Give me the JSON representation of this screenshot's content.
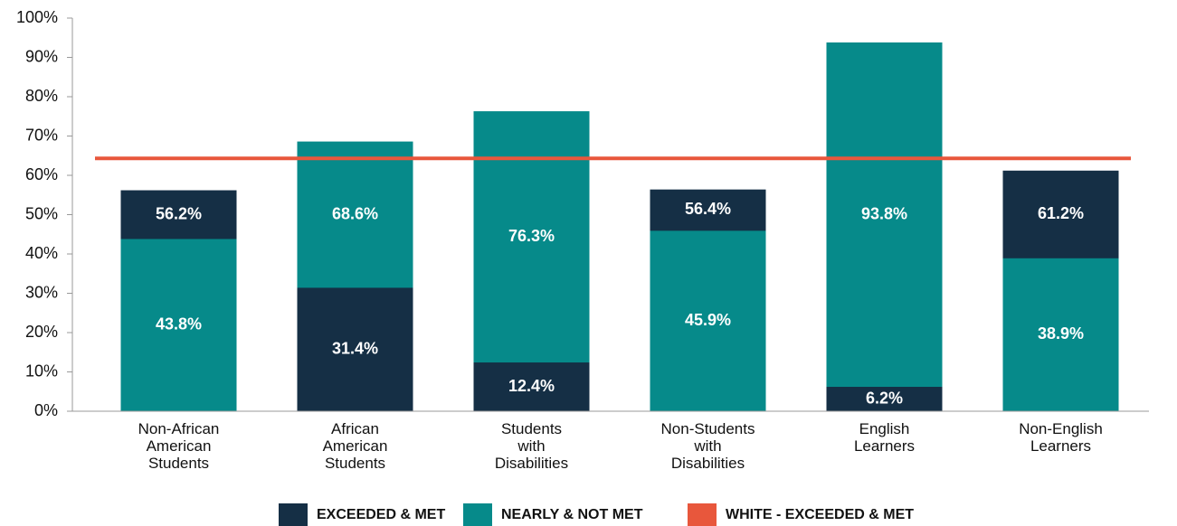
{
  "chart_data": {
    "type": "bar",
    "categories": [
      "Non-African\nAmerican\nStudents",
      "African\nAmerican\nStudents",
      "Students\nwith\nDisabilities",
      "Non-Students\nwith\nDisabilities",
      "English\nLearners",
      "Non-English\nLearners"
    ],
    "series": [
      {
        "name": "EXCEEDED & MET",
        "color": "#152f45",
        "values": [
          56.2,
          31.4,
          12.4,
          56.4,
          6.2,
          61.2
        ],
        "value_labels": [
          "56.2%",
          "31.4%",
          "12.4%",
          "56.4%",
          "6.2%",
          "61.2%"
        ]
      },
      {
        "name": "NEARLY & NOT MET",
        "color": "#068a8a",
        "values": [
          43.8,
          68.6,
          76.3,
          45.9,
          93.8,
          38.9
        ],
        "value_labels": [
          "43.8%",
          "68.6%",
          "76.3%",
          "45.9%",
          "93.8%",
          "38.9%"
        ]
      }
    ],
    "reference_line": {
      "name": "WHITE - EXCEEDED & MET",
      "color": "#e8573c",
      "value": 64.3
    },
    "ylim": [
      0,
      100
    ],
    "yticks": [
      {
        "value": 0,
        "label": "0%"
      },
      {
        "value": 10,
        "label": "10%"
      },
      {
        "value": 20,
        "label": "20%"
      },
      {
        "value": 30,
        "label": "30%"
      },
      {
        "value": 40,
        "label": "40%"
      },
      {
        "value": 50,
        "label": "50%"
      },
      {
        "value": 60,
        "label": "60%"
      },
      {
        "value": 70,
        "label": "70%"
      },
      {
        "value": 80,
        "label": "80%"
      },
      {
        "value": 90,
        "label": "90%"
      },
      {
        "value": 100,
        "label": "100%"
      }
    ],
    "grid": true
  }
}
